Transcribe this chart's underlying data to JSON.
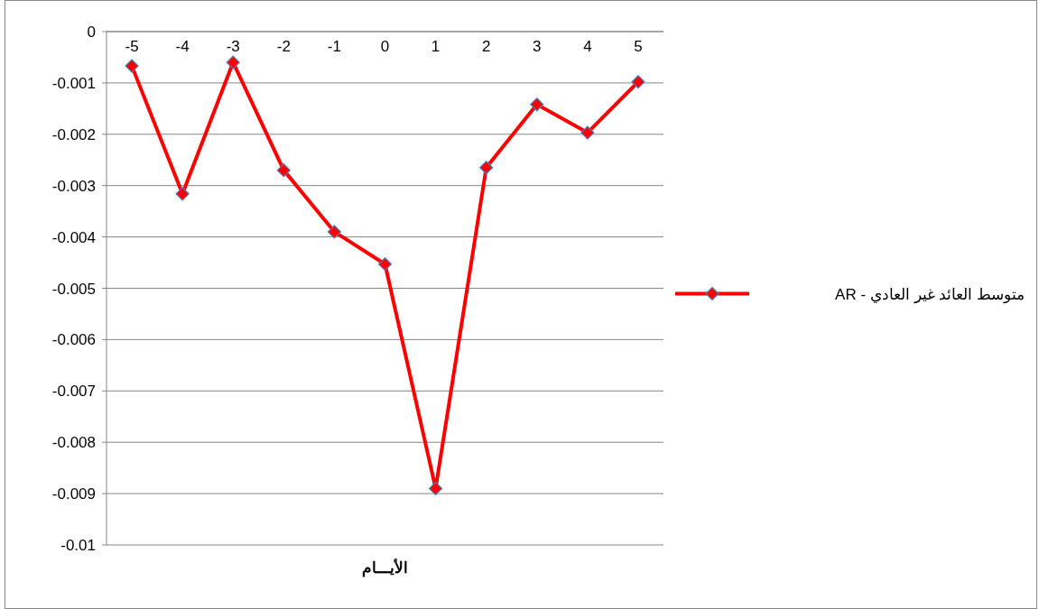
{
  "chart_data": {
    "type": "line",
    "xlabel": "الأيـــام",
    "categories": [
      "-5",
      "-4",
      "-3",
      "-2",
      "-1",
      "0",
      "1",
      "2",
      "3",
      "4",
      "5"
    ],
    "series": [
      {
        "name": "متوسط العائد غير العادي - AR",
        "color": "#ff0000",
        "values": [
          -0.00067,
          -0.00316,
          -0.0006,
          -0.0027,
          -0.0039,
          -0.00453,
          -0.0089,
          -0.00265,
          -0.00142,
          -0.00197,
          -0.00098
        ]
      }
    ],
    "ylim": [
      -0.01,
      0
    ],
    "yticks": [
      0,
      -0.001,
      -0.002,
      -0.003,
      -0.004,
      -0.005,
      -0.006,
      -0.007,
      -0.008,
      -0.009,
      -0.01
    ],
    "grid": "y",
    "legend": "right",
    "marker": "diamond",
    "line_style": "solid"
  }
}
